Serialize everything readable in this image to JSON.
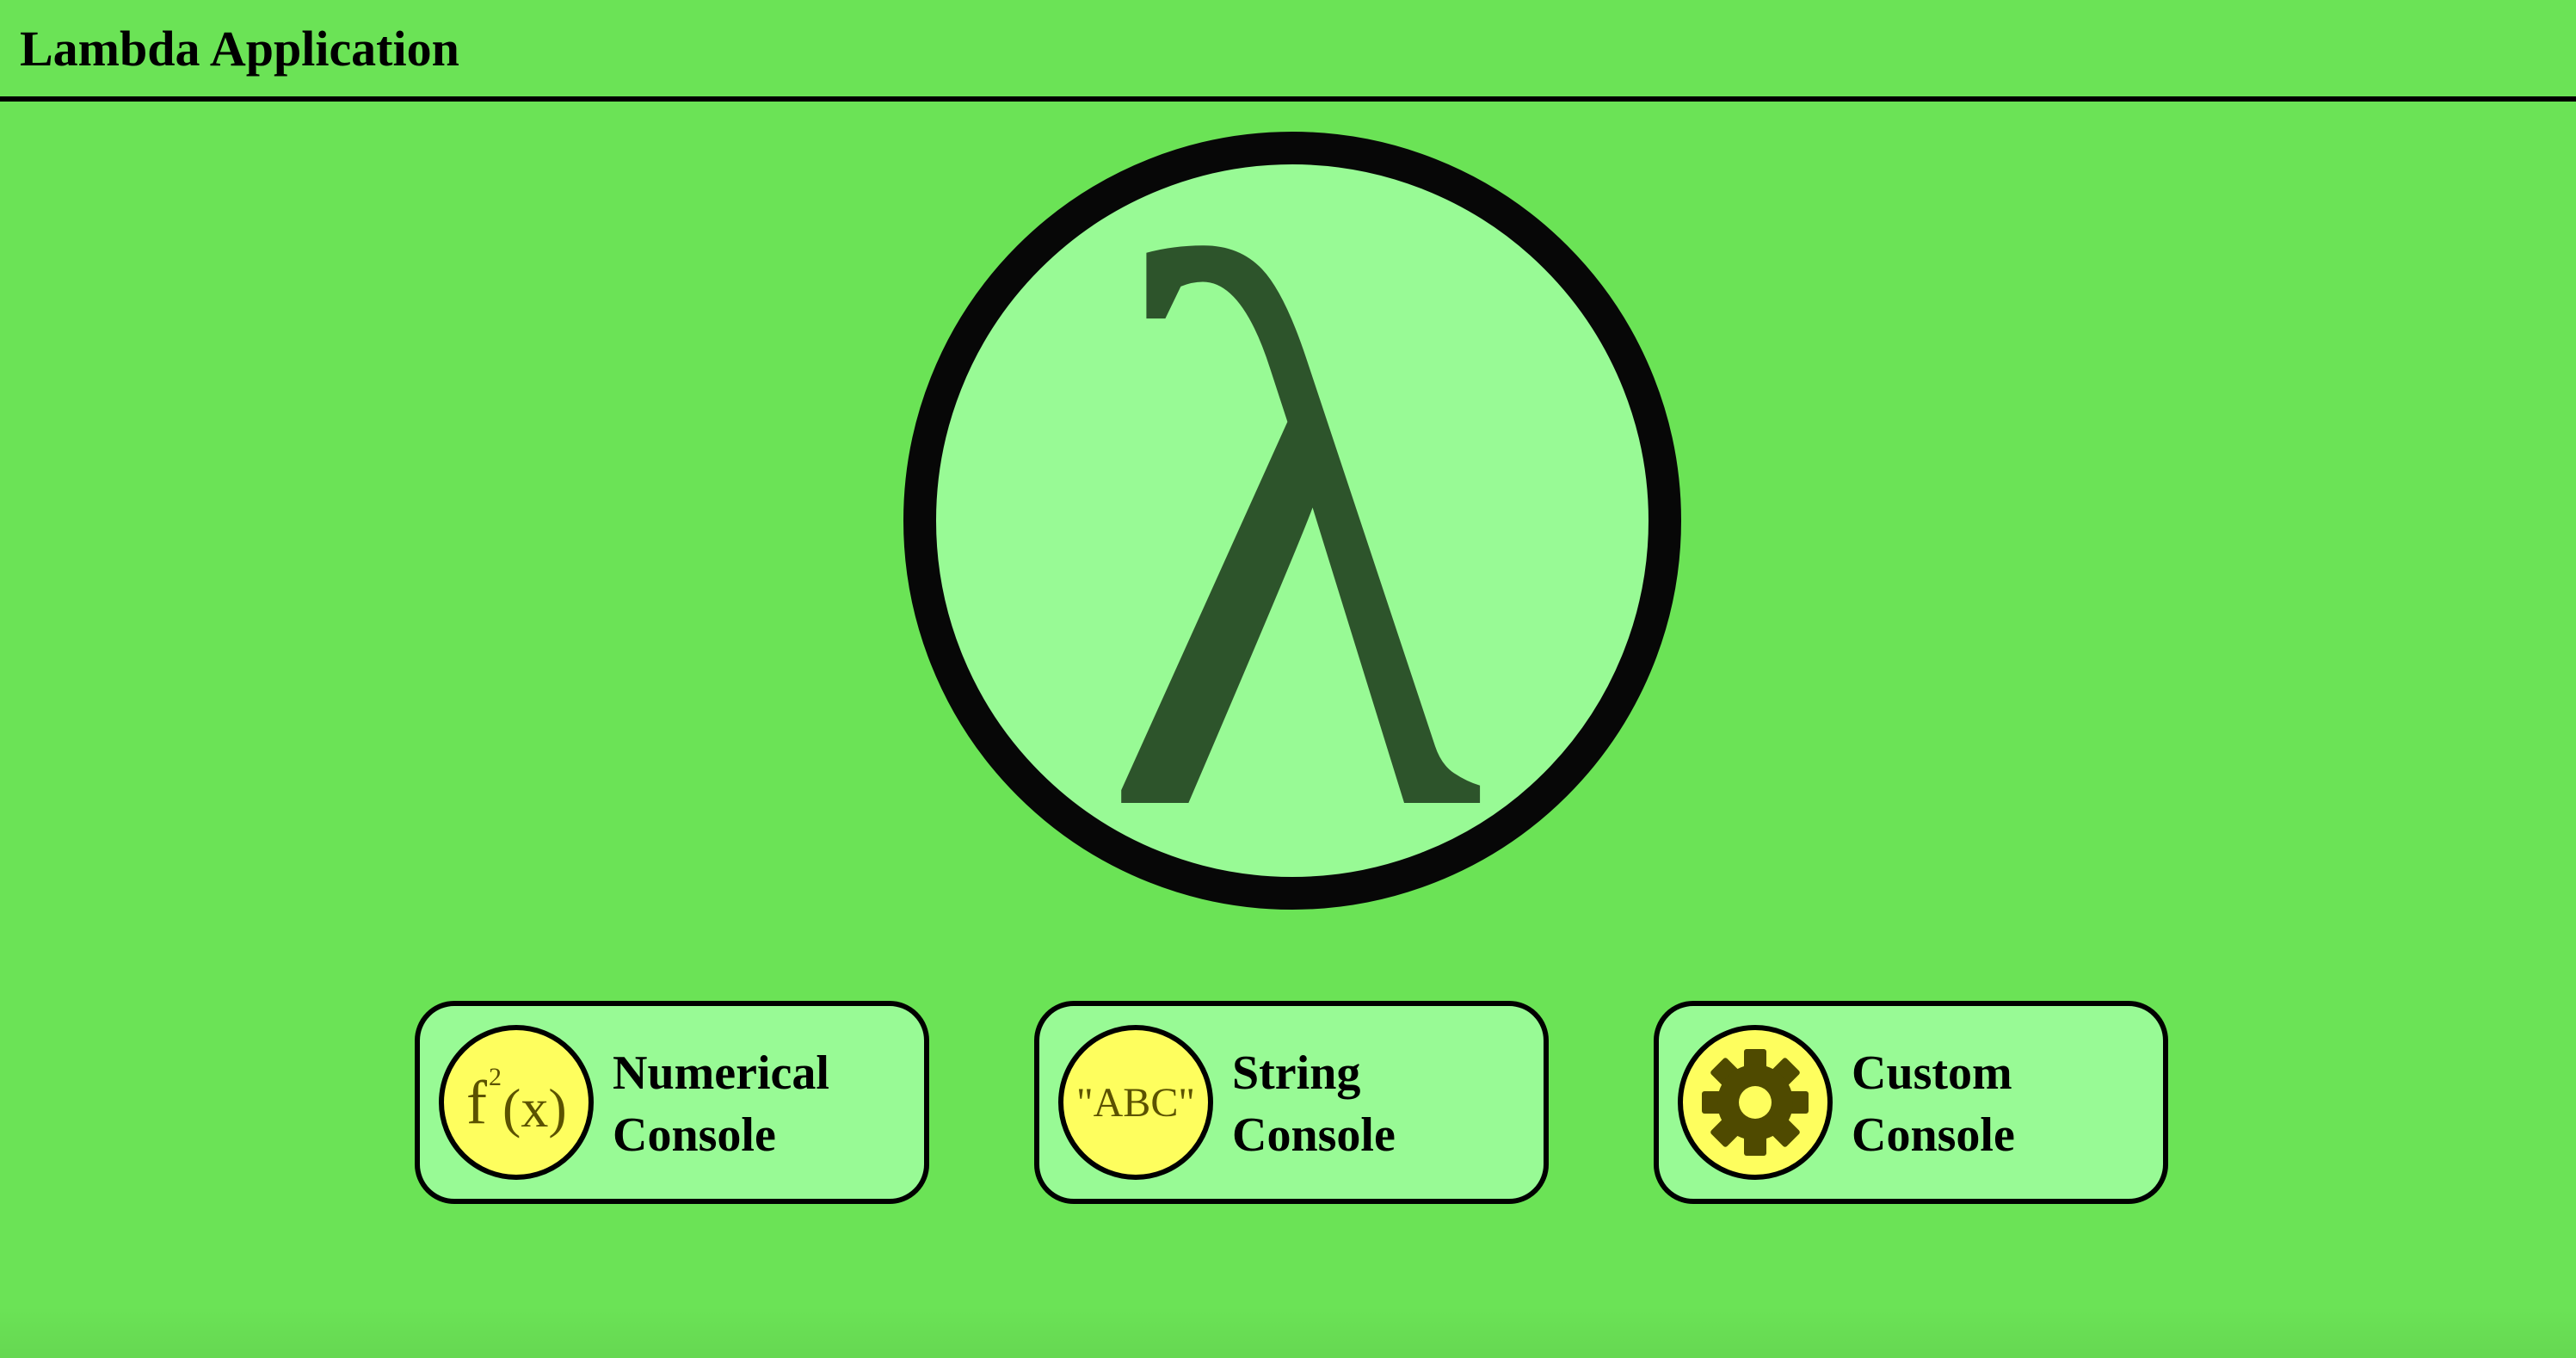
{
  "app": {
    "title": "Lambda Application"
  },
  "logo": {
    "symbol": "λ",
    "icon": "lambda-icon"
  },
  "consoles": [
    {
      "icon": "function-icon",
      "icon_text_base": "f",
      "icon_text_sup": "2",
      "icon_text_arg": "(x)",
      "label_line1": "Numerical",
      "label_line2": "Console"
    },
    {
      "icon": "string-icon",
      "icon_text": "\"ABC\"",
      "label_line1": "String",
      "label_line2": "Console"
    },
    {
      "icon": "gear-icon",
      "label_line1": "Custom",
      "label_line2": "Console"
    }
  ],
  "colors": {
    "background": "#6be356",
    "panel": "#98fa95",
    "icon_circle": "#fefe5e",
    "icon_glyph": "#5b5200",
    "lambda_glyph": "#2d542b",
    "border": "#000000"
  }
}
